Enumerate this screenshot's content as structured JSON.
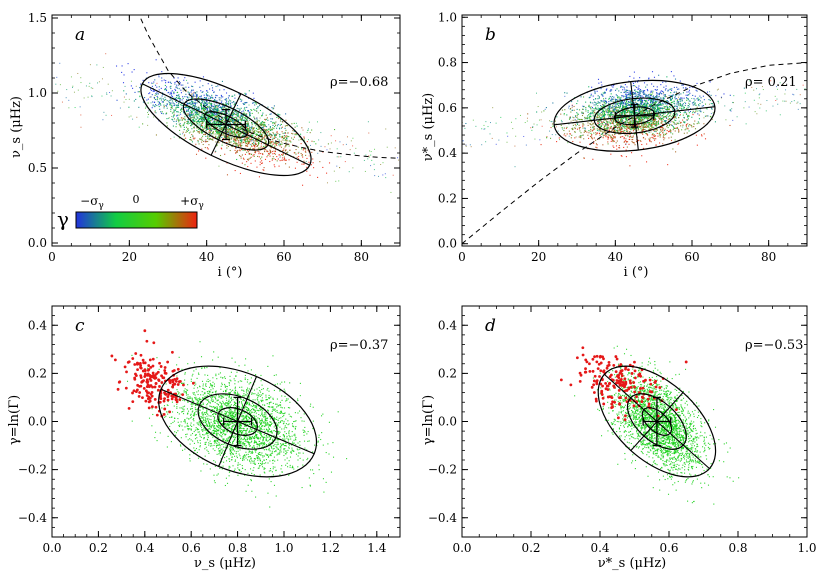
{
  "colors": {
    "green": "#1bd11b",
    "red": "#e51818",
    "blue": "#1a3ee0",
    "axis": "#000000"
  },
  "colorbar": {
    "symbol": "γ",
    "left_label": "−σ",
    "left_sub": "γ",
    "mid_label": "0",
    "right_label": "+σ",
    "right_sub": "γ",
    "colors": [
      "#2233dd",
      "#11cc44",
      "#55cc00",
      "#ee2211"
    ]
  },
  "chart_data": [
    {
      "type": "scatter",
      "panel": "a",
      "rho_label": "ρ=−0.68",
      "xlabel": "i (°)",
      "ylabel": "ν_s (μHz)",
      "xlim": [
        0,
        90
      ],
      "ylim": [
        -0.02,
        1.52
      ],
      "xticks": [
        0,
        20,
        40,
        60,
        80
      ],
      "xtick_labels": [
        "0",
        "20",
        "40",
        "60",
        "80"
      ],
      "yticks": [
        0.0,
        0.5,
        1.0,
        1.5
      ],
      "ytick_labels": [
        "0.0",
        "0.5",
        "1.0",
        "1.5"
      ],
      "color_by": "gamma",
      "cloud": {
        "center": [
          45,
          0.8
        ],
        "sd": [
          9,
          0.12
        ],
        "rho": -0.68,
        "n": 2800
      },
      "ellipse": {
        "center": [
          45,
          0.79
        ],
        "sd": [
          11,
          0.17
        ],
        "rho": -0.68,
        "levels": [
          0.5,
          1,
          2
        ]
      },
      "errorbar": {
        "x": 45,
        "y": 0.79,
        "xerr": 5,
        "yerr": 0.1
      },
      "curve": {
        "style": "dashed",
        "points": [
          [
            22,
            1.55
          ],
          [
            25,
            1.38
          ],
          [
            30,
            1.15
          ],
          [
            35,
            1.0
          ],
          [
            40,
            0.9
          ],
          [
            45,
            0.82
          ],
          [
            50,
            0.75
          ],
          [
            55,
            0.7
          ],
          [
            60,
            0.665
          ],
          [
            65,
            0.635
          ],
          [
            70,
            0.61
          ],
          [
            75,
            0.595
          ],
          [
            80,
            0.58
          ],
          [
            85,
            0.57
          ],
          [
            90,
            0.565
          ]
        ]
      }
    },
    {
      "type": "scatter",
      "panel": "b",
      "rho_label": "ρ= 0.21",
      "xlabel": "i (°)",
      "ylabel": "ν*_s (μHz)",
      "xlim": [
        0,
        90
      ],
      "ylim": [
        -0.01,
        1.01
      ],
      "xticks": [
        0,
        20,
        40,
        60,
        80
      ],
      "xtick_labels": [
        "0",
        "20",
        "40",
        "60",
        "80"
      ],
      "yticks": [
        0.0,
        0.2,
        0.4,
        0.6,
        0.8,
        1.0
      ],
      "ytick_labels": [
        "0.0",
        "0.2",
        "0.4",
        "0.6",
        "0.8",
        "1.0"
      ],
      "color_by": "gamma",
      "cloud": {
        "center": [
          45,
          0.57
        ],
        "sd": [
          8,
          0.06
        ],
        "rho": 0.21,
        "n": 2800
      },
      "ellipse": {
        "center": [
          45,
          0.565
        ],
        "sd": [
          10.5,
          0.078
        ],
        "rho": 0.21,
        "levels": [
          0.5,
          1,
          2
        ]
      },
      "errorbar": {
        "x": 45,
        "y": 0.565,
        "xerr": 5,
        "yerr": 0.05
      },
      "curve": {
        "style": "dashed",
        "points": [
          [
            0,
            0.0
          ],
          [
            10,
            0.139
          ],
          [
            20,
            0.274
          ],
          [
            30,
            0.4
          ],
          [
            40,
            0.514
          ],
          [
            50,
            0.613
          ],
          [
            60,
            0.693
          ],
          [
            70,
            0.752
          ],
          [
            80,
            0.788
          ],
          [
            90,
            0.8
          ]
        ]
      }
    },
    {
      "type": "scatter",
      "panel": "c",
      "rho_label": "ρ=−0.37",
      "xlabel": "ν_s (μHz)",
      "ylabel": "γ=ln(Γ)",
      "xlim": [
        0.0,
        1.5
      ],
      "ylim": [
        -0.48,
        0.48
      ],
      "xticks": [
        0.0,
        0.2,
        0.4,
        0.6,
        0.8,
        1.0,
        1.2,
        1.4
      ],
      "xtick_labels": [
        "0.0",
        "0.2",
        "0.4",
        "0.6",
        "0.8",
        "1.0",
        "1.2",
        "1.4"
      ],
      "yticks": [
        -0.4,
        -0.2,
        0.0,
        0.2,
        0.4
      ],
      "ytick_labels": [
        "−0.4",
        "−0.2",
        "0.0",
        "0.2",
        "0.4"
      ],
      "color_by": "outlier",
      "cloud": {
        "center": [
          0.8,
          -0.01
        ],
        "sd": [
          0.14,
          0.1
        ],
        "rho": -0.37,
        "n": 2600
      },
      "ellipse": {
        "center": [
          0.8,
          0.0
        ],
        "sd": [
          0.17,
          0.115
        ],
        "rho": -0.37,
        "levels": [
          0.5,
          1,
          2
        ]
      },
      "errorbar": {
        "x": 0.8,
        "y": 0.0,
        "xerr": 0.06,
        "yerr": 0.1
      },
      "outliers": {
        "center": [
          0.45,
          0.16
        ],
        "sd": [
          0.07,
          0.06
        ],
        "rho": -0.3,
        "n": 190
      }
    },
    {
      "type": "scatter",
      "panel": "d",
      "rho_label": "ρ=−0.53",
      "xlabel": "ν*_s (μHz)",
      "ylabel": "γ=ln(Γ)",
      "xlim": [
        0.0,
        1.0
      ],
      "ylim": [
        -0.48,
        0.48
      ],
      "xticks": [
        0.0,
        0.2,
        0.4,
        0.6,
        0.8,
        1.0
      ],
      "xtick_labels": [
        "0.0",
        "0.2",
        "0.4",
        "0.6",
        "0.8",
        "1.0"
      ],
      "yticks": [
        -0.4,
        -0.2,
        0.0,
        0.2,
        0.4
      ],
      "ytick_labels": [
        "−0.4",
        "−0.2",
        "0.0",
        "0.2",
        "0.4"
      ],
      "color_by": "outlier",
      "cloud": {
        "center": [
          0.57,
          -0.01
        ],
        "sd": [
          0.065,
          0.1
        ],
        "rho": -0.53,
        "n": 2600
      },
      "ellipse": {
        "center": [
          0.565,
          0.0
        ],
        "sd": [
          0.085,
          0.115
        ],
        "rho": -0.53,
        "levels": [
          0.5,
          1,
          2
        ]
      },
      "errorbar": {
        "x": 0.565,
        "y": 0.0,
        "xerr": 0.04,
        "yerr": 0.1
      },
      "outliers": {
        "center": [
          0.45,
          0.17
        ],
        "sd": [
          0.06,
          0.06
        ],
        "rho": -0.4,
        "n": 180
      }
    }
  ]
}
